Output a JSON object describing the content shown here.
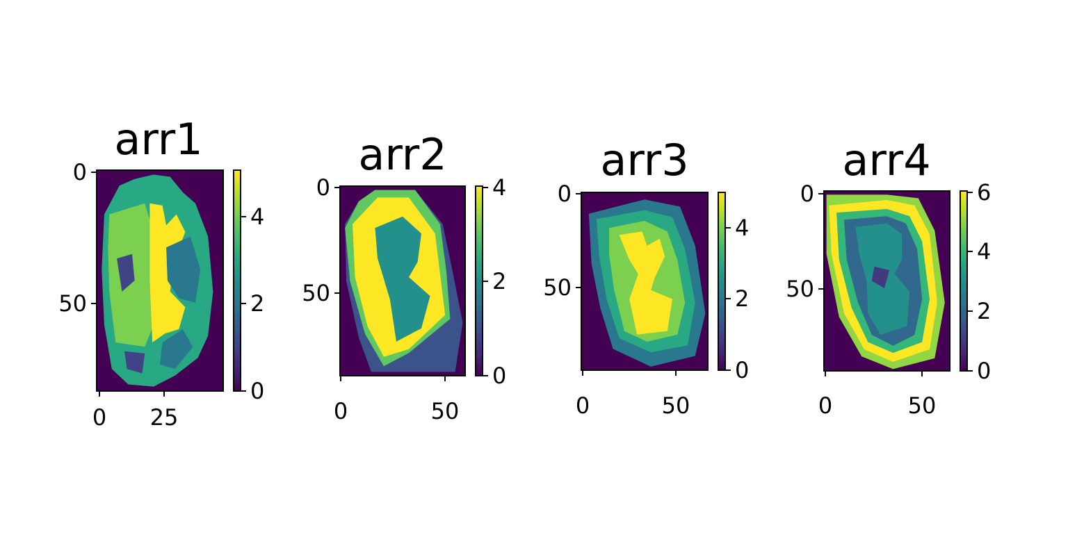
{
  "figure": {
    "background": "#ffffff"
  },
  "chart_data": [
    {
      "type": "heatmap",
      "title": "arr1",
      "colormap": "viridis",
      "shape_note": "segmented cross-section, discrete label values",
      "x_ticks": [
        "0",
        "25"
      ],
      "y_ticks": [
        "0",
        "50"
      ],
      "colorbar_ticks": [
        "0",
        "2",
        "4"
      ],
      "value_range": [
        0,
        5
      ],
      "xlim": [
        0,
        47
      ],
      "ylim": [
        0,
        84
      ],
      "regions": [
        {
          "role": "background",
          "value": 0
        },
        {
          "role": "outer-rim",
          "value": 3
        },
        {
          "role": "left-lobe",
          "value": 4
        },
        {
          "role": "center-band",
          "value": 5
        },
        {
          "role": "inner-patches",
          "value": 2
        },
        {
          "role": "notch-spots",
          "value": 1
        }
      ]
    },
    {
      "type": "heatmap",
      "title": "arr2",
      "colormap": "viridis",
      "x_ticks": [
        "0",
        "50"
      ],
      "y_ticks": [
        "0",
        "50"
      ],
      "colorbar_ticks": [
        "0",
        "2",
        "4"
      ],
      "value_range": [
        0,
        4
      ],
      "xlim": [
        0,
        60
      ],
      "ylim": [
        0,
        90
      ],
      "regions": [
        {
          "role": "background",
          "value": 0
        },
        {
          "role": "outer-rim",
          "value": 1
        },
        {
          "role": "edge-band",
          "value": 3
        },
        {
          "role": "inner-ring",
          "value": 4
        },
        {
          "role": "core",
          "value": 2
        }
      ]
    },
    {
      "type": "heatmap",
      "title": "arr3",
      "colormap": "viridis",
      "x_ticks": [
        "0",
        "50"
      ],
      "y_ticks": [
        "0",
        "50"
      ],
      "colorbar_ticks": [
        "0",
        "2",
        "4"
      ],
      "value_range": [
        0,
        5
      ],
      "xlim": [
        0,
        67
      ],
      "ylim": [
        0,
        95
      ],
      "regions": [
        {
          "role": "background",
          "value": 0
        },
        {
          "role": "outer-shell",
          "value": 2
        },
        {
          "role": "mid-ring",
          "value": 3
        },
        {
          "role": "inner-ring",
          "value": 4
        },
        {
          "role": "core",
          "value": 5
        }
      ]
    },
    {
      "type": "heatmap",
      "title": "arr4",
      "colormap": "viridis",
      "x_ticks": [
        "0",
        "50"
      ],
      "y_ticks": [
        "0",
        "50"
      ],
      "colorbar_ticks": [
        "0",
        "2",
        "4",
        "6"
      ],
      "value_range": [
        0,
        6
      ],
      "xlim": [
        0,
        65
      ],
      "ylim": [
        0,
        93
      ],
      "regions": [
        {
          "role": "background",
          "value": 0
        },
        {
          "role": "outer-rim",
          "value": 5
        },
        {
          "role": "edge-band",
          "value": 6
        },
        {
          "role": "inner-ring",
          "value": 4
        },
        {
          "role": "mid-ring",
          "value": 2
        },
        {
          "role": "core",
          "value": 3
        },
        {
          "role": "center-notch",
          "value": 1
        }
      ]
    }
  ]
}
